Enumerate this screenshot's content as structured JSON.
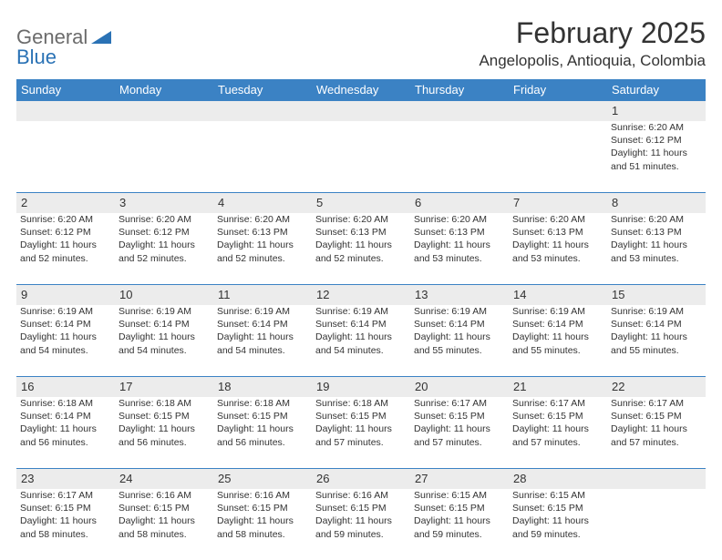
{
  "logo": {
    "textGray": "General",
    "textBlue": "Blue"
  },
  "title": "February 2025",
  "location": "Angelopolis, Antioquia, Colombia",
  "colors": {
    "headerBlue": "#3b82c4",
    "logoBlue": "#2a72b5",
    "logoGray": "#6b6b6b",
    "dayNumBg": "#ececec",
    "text": "#333333"
  },
  "weekdays": [
    "Sunday",
    "Monday",
    "Tuesday",
    "Wednesday",
    "Thursday",
    "Friday",
    "Saturday"
  ],
  "weeks": [
    [
      null,
      null,
      null,
      null,
      null,
      null,
      {
        "n": "1",
        "sr": "Sunrise: 6:20 AM",
        "ss": "Sunset: 6:12 PM",
        "dl": "Daylight: 11 hours and 51 minutes."
      }
    ],
    [
      {
        "n": "2",
        "sr": "Sunrise: 6:20 AM",
        "ss": "Sunset: 6:12 PM",
        "dl": "Daylight: 11 hours and 52 minutes."
      },
      {
        "n": "3",
        "sr": "Sunrise: 6:20 AM",
        "ss": "Sunset: 6:12 PM",
        "dl": "Daylight: 11 hours and 52 minutes."
      },
      {
        "n": "4",
        "sr": "Sunrise: 6:20 AM",
        "ss": "Sunset: 6:13 PM",
        "dl": "Daylight: 11 hours and 52 minutes."
      },
      {
        "n": "5",
        "sr": "Sunrise: 6:20 AM",
        "ss": "Sunset: 6:13 PM",
        "dl": "Daylight: 11 hours and 52 minutes."
      },
      {
        "n": "6",
        "sr": "Sunrise: 6:20 AM",
        "ss": "Sunset: 6:13 PM",
        "dl": "Daylight: 11 hours and 53 minutes."
      },
      {
        "n": "7",
        "sr": "Sunrise: 6:20 AM",
        "ss": "Sunset: 6:13 PM",
        "dl": "Daylight: 11 hours and 53 minutes."
      },
      {
        "n": "8",
        "sr": "Sunrise: 6:20 AM",
        "ss": "Sunset: 6:13 PM",
        "dl": "Daylight: 11 hours and 53 minutes."
      }
    ],
    [
      {
        "n": "9",
        "sr": "Sunrise: 6:19 AM",
        "ss": "Sunset: 6:14 PM",
        "dl": "Daylight: 11 hours and 54 minutes."
      },
      {
        "n": "10",
        "sr": "Sunrise: 6:19 AM",
        "ss": "Sunset: 6:14 PM",
        "dl": "Daylight: 11 hours and 54 minutes."
      },
      {
        "n": "11",
        "sr": "Sunrise: 6:19 AM",
        "ss": "Sunset: 6:14 PM",
        "dl": "Daylight: 11 hours and 54 minutes."
      },
      {
        "n": "12",
        "sr": "Sunrise: 6:19 AM",
        "ss": "Sunset: 6:14 PM",
        "dl": "Daylight: 11 hours and 54 minutes."
      },
      {
        "n": "13",
        "sr": "Sunrise: 6:19 AM",
        "ss": "Sunset: 6:14 PM",
        "dl": "Daylight: 11 hours and 55 minutes."
      },
      {
        "n": "14",
        "sr": "Sunrise: 6:19 AM",
        "ss": "Sunset: 6:14 PM",
        "dl": "Daylight: 11 hours and 55 minutes."
      },
      {
        "n": "15",
        "sr": "Sunrise: 6:19 AM",
        "ss": "Sunset: 6:14 PM",
        "dl": "Daylight: 11 hours and 55 minutes."
      }
    ],
    [
      {
        "n": "16",
        "sr": "Sunrise: 6:18 AM",
        "ss": "Sunset: 6:14 PM",
        "dl": "Daylight: 11 hours and 56 minutes."
      },
      {
        "n": "17",
        "sr": "Sunrise: 6:18 AM",
        "ss": "Sunset: 6:15 PM",
        "dl": "Daylight: 11 hours and 56 minutes."
      },
      {
        "n": "18",
        "sr": "Sunrise: 6:18 AM",
        "ss": "Sunset: 6:15 PM",
        "dl": "Daylight: 11 hours and 56 minutes."
      },
      {
        "n": "19",
        "sr": "Sunrise: 6:18 AM",
        "ss": "Sunset: 6:15 PM",
        "dl": "Daylight: 11 hours and 57 minutes."
      },
      {
        "n": "20",
        "sr": "Sunrise: 6:17 AM",
        "ss": "Sunset: 6:15 PM",
        "dl": "Daylight: 11 hours and 57 minutes."
      },
      {
        "n": "21",
        "sr": "Sunrise: 6:17 AM",
        "ss": "Sunset: 6:15 PM",
        "dl": "Daylight: 11 hours and 57 minutes."
      },
      {
        "n": "22",
        "sr": "Sunrise: 6:17 AM",
        "ss": "Sunset: 6:15 PM",
        "dl": "Daylight: 11 hours and 57 minutes."
      }
    ],
    [
      {
        "n": "23",
        "sr": "Sunrise: 6:17 AM",
        "ss": "Sunset: 6:15 PM",
        "dl": "Daylight: 11 hours and 58 minutes."
      },
      {
        "n": "24",
        "sr": "Sunrise: 6:16 AM",
        "ss": "Sunset: 6:15 PM",
        "dl": "Daylight: 11 hours and 58 minutes."
      },
      {
        "n": "25",
        "sr": "Sunrise: 6:16 AM",
        "ss": "Sunset: 6:15 PM",
        "dl": "Daylight: 11 hours and 58 minutes."
      },
      {
        "n": "26",
        "sr": "Sunrise: 6:16 AM",
        "ss": "Sunset: 6:15 PM",
        "dl": "Daylight: 11 hours and 59 minutes."
      },
      {
        "n": "27",
        "sr": "Sunrise: 6:15 AM",
        "ss": "Sunset: 6:15 PM",
        "dl": "Daylight: 11 hours and 59 minutes."
      },
      {
        "n": "28",
        "sr": "Sunrise: 6:15 AM",
        "ss": "Sunset: 6:15 PM",
        "dl": "Daylight: 11 hours and 59 minutes."
      },
      null
    ]
  ]
}
